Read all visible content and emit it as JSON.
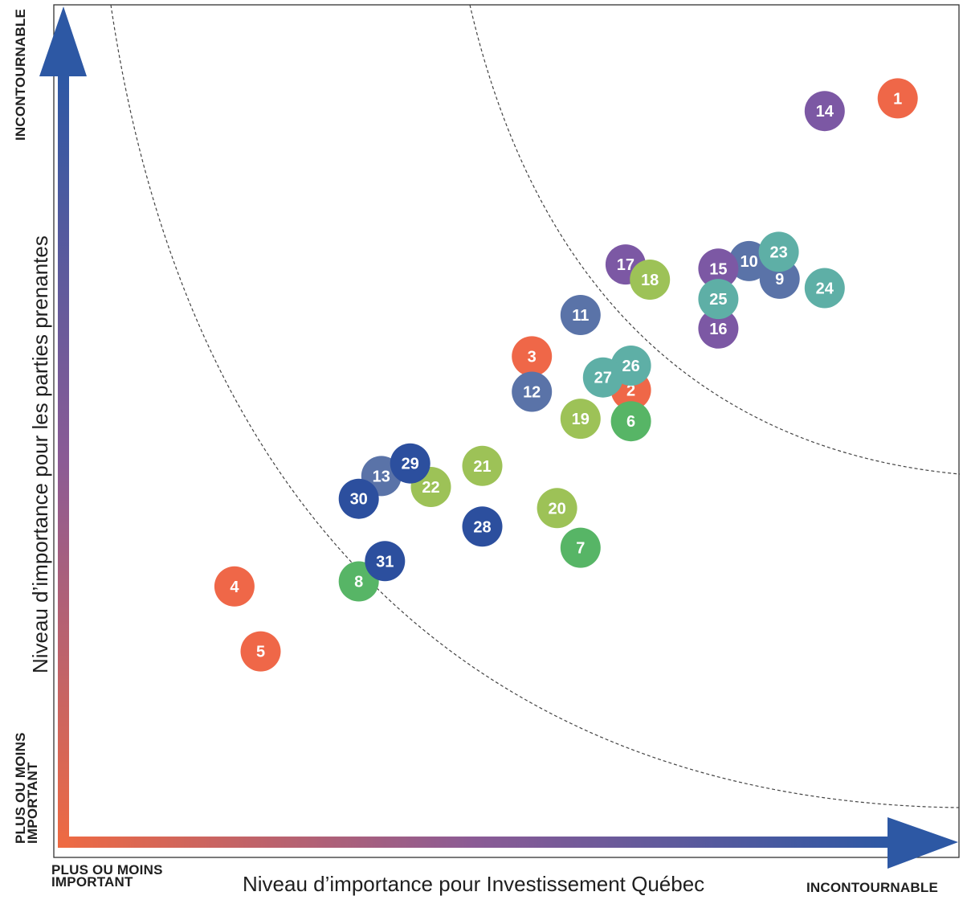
{
  "chart_data": {
    "type": "scatter",
    "xlabel": "Niveau d’importance pour Investissement Québec",
    "ylabel": "Niveau d’importance pour les parties prenantes",
    "x_tick_labels": {
      "low": "PLUS OU MOINS\nIMPORTANT",
      "high": "INCONTOURNABLE"
    },
    "y_tick_labels": {
      "low": "PLUS OU MOINS\nIMPORTANT",
      "high": "INCONTOURNABLE"
    },
    "xlim": [
      0,
      100
    ],
    "ylim": [
      0,
      100
    ],
    "grid": false,
    "series": [
      {
        "color": "#ef6748",
        "points": [
          {
            "label": "1",
            "x": 93.2,
            "y": 88.9
          },
          {
            "label": "2",
            "x": 63.6,
            "y": 54.3
          },
          {
            "label": "3",
            "x": 52.6,
            "y": 58.3
          },
          {
            "label": "4",
            "x": 19.6,
            "y": 31.0
          },
          {
            "label": "5",
            "x": 22.5,
            "y": 23.3
          }
        ]
      },
      {
        "color": "#57b566",
        "points": [
          {
            "label": "6",
            "x": 63.6,
            "y": 50.6
          },
          {
            "label": "7",
            "x": 58.0,
            "y": 35.6
          },
          {
            "label": "8",
            "x": 33.4,
            "y": 31.6
          }
        ]
      },
      {
        "color": "#5a73a8",
        "points": [
          {
            "label": "9",
            "x": 80.1,
            "y": 67.5
          },
          {
            "label": "10",
            "x": 76.7,
            "y": 69.6
          },
          {
            "label": "11",
            "x": 58.0,
            "y": 63.2
          },
          {
            "label": "12",
            "x": 52.6,
            "y": 54.1
          },
          {
            "label": "13",
            "x": 35.9,
            "y": 44.1
          }
        ]
      },
      {
        "color": "#7c58a4",
        "points": [
          {
            "label": "14",
            "x": 85.1,
            "y": 87.4
          },
          {
            "label": "15",
            "x": 73.3,
            "y": 68.7
          },
          {
            "label": "16",
            "x": 73.3,
            "y": 61.6
          },
          {
            "label": "17",
            "x": 63.0,
            "y": 69.2
          }
        ]
      },
      {
        "color": "#9dc257",
        "points": [
          {
            "label": "18",
            "x": 65.7,
            "y": 67.4
          },
          {
            "label": "19",
            "x": 58.0,
            "y": 50.9
          },
          {
            "label": "20",
            "x": 55.4,
            "y": 40.3
          },
          {
            "label": "21",
            "x": 47.1,
            "y": 45.3
          },
          {
            "label": "22",
            "x": 41.4,
            "y": 42.8
          }
        ]
      },
      {
        "color": "#5eafa6",
        "points": [
          {
            "label": "23",
            "x": 80.0,
            "y": 70.7
          },
          {
            "label": "24",
            "x": 85.1,
            "y": 66.4
          },
          {
            "label": "25",
            "x": 73.3,
            "y": 65.1
          },
          {
            "label": "26",
            "x": 63.6,
            "y": 57.2
          },
          {
            "label": "27",
            "x": 60.5,
            "y": 55.8
          }
        ]
      },
      {
        "color": "#2c4f9e",
        "points": [
          {
            "label": "28",
            "x": 47.1,
            "y": 38.1
          },
          {
            "label": "29",
            "x": 39.1,
            "y": 45.6
          },
          {
            "label": "30",
            "x": 33.4,
            "y": 41.4
          },
          {
            "label": "31",
            "x": 36.3,
            "y": 34.0
          }
        ]
      }
    ],
    "colors": {
      "axis_gradient_start": "#ef6a42",
      "axis_gradient_mid": "#8b5b95",
      "axis_gradient_end": "#2d58a4",
      "frame": "#333333",
      "dashed": "#444444"
    }
  }
}
